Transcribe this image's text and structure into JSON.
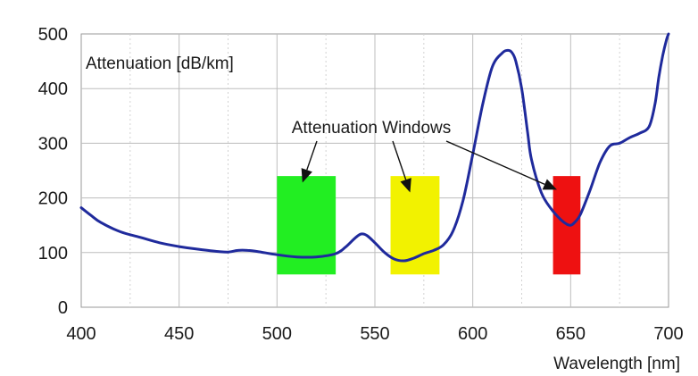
{
  "chart_data": {
    "type": "line",
    "title": "",
    "ylabel": "Attenuation [dB/km]",
    "xlabel": "Wavelength [nm]",
    "xlim": [
      400,
      700
    ],
    "ylim": [
      0,
      500
    ],
    "xticks": [
      400,
      450,
      500,
      550,
      600,
      650,
      700
    ],
    "yticks": [
      0,
      100,
      200,
      300,
      400,
      500
    ],
    "xtick_labels": [
      "400",
      "450",
      "500",
      "550",
      "600",
      "650",
      "700"
    ],
    "ytick_labels": [
      "0",
      "100",
      "200",
      "300",
      "400",
      "500"
    ],
    "x_minor_gridlines": [
      425,
      475,
      525,
      575,
      625,
      675
    ],
    "grid": true,
    "line_color": "#1f2a9c",
    "series": [
      {
        "x": [
          400,
          405,
          410,
          420,
          430,
          440,
          450,
          460,
          470,
          475,
          480,
          485,
          490,
          500,
          510,
          520,
          530,
          535,
          540,
          543,
          546,
          550,
          555,
          560,
          565,
          570,
          575,
          580,
          585,
          590,
          595,
          600,
          605,
          610,
          615,
          618,
          620,
          622,
          625,
          628,
          630,
          635,
          640,
          645,
          648,
          650,
          652,
          655,
          660,
          665,
          670,
          675,
          680,
          685,
          690,
          693,
          695,
          697,
          699,
          700
        ],
        "y": [
          182,
          168,
          155,
          138,
          128,
          118,
          111,
          106,
          102,
          101,
          104,
          104,
          102,
          96,
          92,
          92,
          98,
          110,
          127,
          134,
          131,
          118,
          100,
          88,
          85,
          90,
          98,
          104,
          114,
          140,
          195,
          280,
          370,
          440,
          465,
          470,
          466,
          450,
          400,
          320,
          270,
          210,
          180,
          160,
          152,
          150,
          155,
          170,
          215,
          265,
          295,
          300,
          310,
          318,
          330,
          370,
          420,
          460,
          490,
          500
        ]
      }
    ],
    "windows": [
      {
        "x0": 500,
        "x1": 530,
        "y0": 60,
        "y1": 240,
        "color": "#22ee22"
      },
      {
        "x0": 558,
        "x1": 583,
        "y0": 60,
        "y1": 240,
        "color": "#f2f200"
      },
      {
        "x0": 641,
        "x1": 655,
        "y0": 60,
        "y1": 240,
        "color": "#ee1111"
      }
    ],
    "annotation": {
      "text": "Attenuation Windows",
      "arrow_targets": [
        {
          "x": 513,
          "y": 228
        },
        {
          "x": 568,
          "y": 210
        },
        {
          "x": 643,
          "y": 215
        }
      ]
    }
  }
}
